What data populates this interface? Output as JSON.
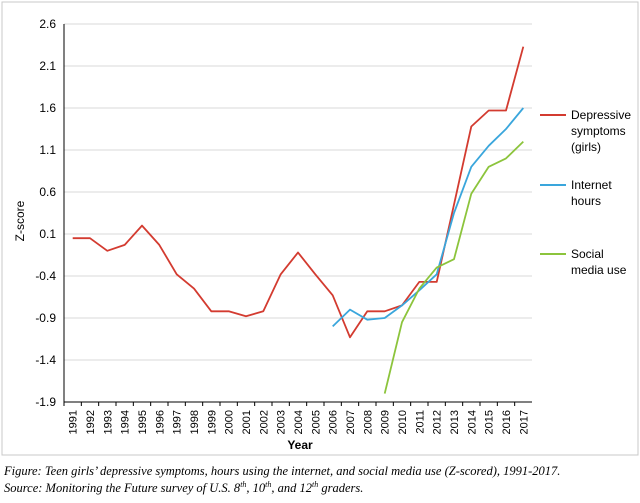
{
  "chart_data": {
    "type": "line",
    "title": "",
    "xlabel": "Year",
    "ylabel": "Z-score",
    "ylim": [
      -1.9,
      2.6
    ],
    "yticks": [
      "2.6",
      "2.1",
      "1.6",
      "1.1",
      "0.6",
      "0.1",
      "-0.4",
      "-0.9",
      "-1.4",
      "-1.9"
    ],
    "x": [
      "1991",
      "1992",
      "1993",
      "1994",
      "1995",
      "1996",
      "1997",
      "1998",
      "1999",
      "2000",
      "2001",
      "2002",
      "2003",
      "2004",
      "2005",
      "2006",
      "2007",
      "2008",
      "2009",
      "2010",
      "2011",
      "2012",
      "2013",
      "2014",
      "2015",
      "2016",
      "2017"
    ],
    "legend_position": "right",
    "series": [
      {
        "name_lines": [
          "Depressive",
          "symptoms",
          "(girls)"
        ],
        "color": "#d33b30",
        "values": [
          0.05,
          0.05,
          -0.1,
          -0.03,
          0.2,
          -0.03,
          -0.38,
          -0.55,
          -0.82,
          -0.82,
          -0.88,
          -0.82,
          -0.38,
          -0.12,
          -0.38,
          -0.63,
          -1.13,
          -0.82,
          -0.82,
          -0.75,
          -0.47,
          -0.47,
          0.45,
          1.38,
          1.57,
          1.57,
          2.33
        ]
      },
      {
        "name_lines": [
          "Internet",
          "hours"
        ],
        "color": "#3aa6dc",
        "values": [
          null,
          null,
          null,
          null,
          null,
          null,
          null,
          null,
          null,
          null,
          null,
          null,
          null,
          null,
          null,
          -1.0,
          -0.8,
          -0.92,
          -0.9,
          -0.75,
          -0.57,
          -0.38,
          0.35,
          0.9,
          1.15,
          1.35,
          1.6
        ]
      },
      {
        "name_lines": [
          "Social",
          "media use"
        ],
        "color": "#8cc43c",
        "values": [
          null,
          null,
          null,
          null,
          null,
          null,
          null,
          null,
          null,
          null,
          null,
          null,
          null,
          null,
          null,
          null,
          null,
          null,
          -1.8,
          -0.95,
          -0.55,
          -0.3,
          -0.2,
          0.58,
          0.9,
          1.0,
          1.2
        ]
      }
    ]
  },
  "caption": {
    "figure": "Figure: Teen girls’ depressive symptoms, hours using the internet, and social media use (Z-scored), 1991-2017.",
    "source_prefix": "Source: Monitoring the Future survey of U.S. 8",
    "sup1": "th",
    "sep1": ", 10",
    "sup2": "th",
    "sep2": ", and 12",
    "sup3": "th",
    "source_suffix": " graders."
  }
}
